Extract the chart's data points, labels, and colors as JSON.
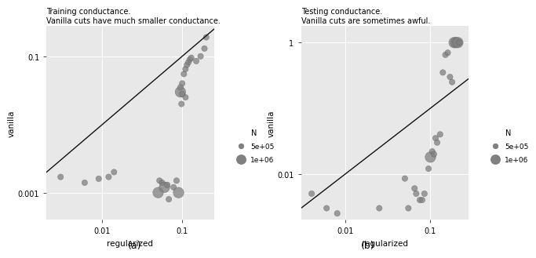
{
  "title_a": "Training conductance.\nVanilla cuts have much smaller conductance.",
  "title_b": "Testing conductance.\nVanilla cuts are sometimes awful.",
  "xlabel": "regularized",
  "ylabel": "vanilla",
  "caption_a": "(a)",
  "caption_b": "(b)",
  "bg_color": "#e8e8e8",
  "dot_color": "#808080",
  "line_color": "#111111",
  "legend_title": "N",
  "legend_labels": [
    "5e+05",
    "1e+06"
  ],
  "legend_sizes_pt": [
    7,
    11
  ],
  "plot_a": {
    "regularized": [
      0.003,
      0.006,
      0.009,
      0.012,
      0.014,
      0.05,
      0.052,
      0.056,
      0.06,
      0.065,
      0.068,
      0.078,
      0.085,
      0.09,
      0.095,
      0.098,
      0.1,
      0.105,
      0.11,
      0.115,
      0.12,
      0.125,
      0.13,
      0.15,
      0.17,
      0.19,
      0.2,
      0.095,
      0.11,
      0.1
    ],
    "vanilla": [
      0.0017,
      0.0014,
      0.0016,
      0.0017,
      0.002,
      0.001,
      0.0015,
      0.0014,
      0.0012,
      0.0013,
      0.0008,
      0.0012,
      0.0015,
      0.001,
      0.03,
      0.02,
      0.04,
      0.055,
      0.065,
      0.075,
      0.082,
      0.09,
      0.095,
      0.085,
      0.1,
      0.13,
      0.19,
      0.035,
      0.025,
      0.028
    ],
    "size_cat": [
      0,
      0,
      0,
      0,
      0,
      1,
      0,
      0,
      1,
      0,
      0,
      0,
      0,
      1,
      1,
      0,
      0,
      0,
      0,
      0,
      0,
      0,
      0,
      0,
      0,
      0,
      0,
      0,
      0,
      0
    ]
  },
  "plot_b": {
    "regularized": [
      0.004,
      0.006,
      0.008,
      0.025,
      0.05,
      0.055,
      0.065,
      0.068,
      0.075,
      0.08,
      0.085,
      0.095,
      0.1,
      0.105,
      0.11,
      0.115,
      0.12,
      0.13,
      0.14,
      0.15,
      0.16,
      0.17,
      0.18,
      0.19,
      0.2,
      0.21,
      0.22
    ],
    "vanilla": [
      0.005,
      0.003,
      0.0025,
      0.003,
      0.0085,
      0.003,
      0.006,
      0.005,
      0.004,
      0.004,
      0.005,
      0.012,
      0.018,
      0.022,
      0.02,
      0.035,
      0.03,
      0.04,
      0.35,
      0.65,
      0.7,
      0.3,
      0.25,
      1.0,
      1.0,
      1.0,
      1.0
    ],
    "size_cat": [
      0,
      0,
      0,
      0,
      0,
      0,
      0,
      0,
      0,
      0,
      0,
      0,
      1,
      0,
      0,
      0,
      0,
      0,
      0,
      0,
      0,
      0,
      0,
      1,
      1,
      1,
      0
    ]
  }
}
